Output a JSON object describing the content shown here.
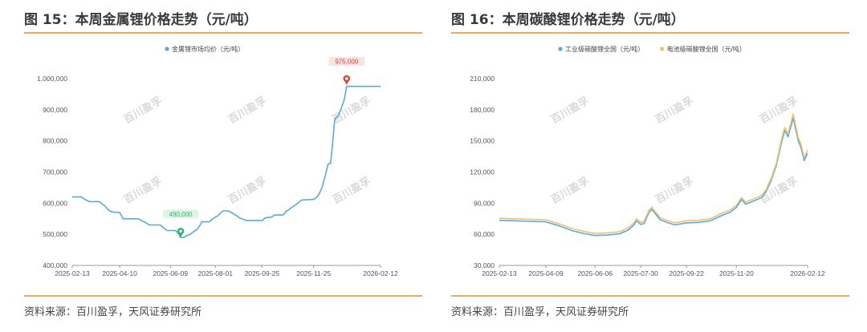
{
  "left": {
    "title": "图 15：本周金属锂价格走势（元/吨）",
    "source": "资料来源：百川盈孚，天风证券研究所"
  },
  "right": {
    "title": "图 16：本周碳酸锂价格走势（元/吨）",
    "source": "资料来源：百川盈孚，天风证券研究所"
  },
  "watermark": "百川盈孚",
  "chart_data": [
    {
      "type": "line",
      "title": "",
      "legend": [
        "金属锂市场均价（元/吨）"
      ],
      "legend_position": "top-center",
      "x_tick_labels": [
        "2025-02-13",
        "2025-04-10",
        "2025-06-09",
        "2025-08-01",
        "2025-09-25",
        "2025-11-25",
        "2026-02-12"
      ],
      "y_tick_labels": [
        "400,000",
        "500,000",
        "600,000",
        "700,000",
        "800,000",
        "900,000",
        "1,000,000"
      ],
      "ylim": [
        400000,
        1000000
      ],
      "grid": false,
      "colors": {
        "line": "#5aa9dc"
      },
      "series": [
        {
          "name": "金属锂市场均价（元/吨）",
          "points": [
            [
              "2025-02-13",
              620000
            ],
            [
              "2025-02-24",
              620000
            ],
            [
              "2025-02-28",
              612000
            ],
            [
              "2025-03-05",
              605000
            ],
            [
              "2025-03-17",
              605000
            ],
            [
              "2025-03-20",
              598000
            ],
            [
              "2025-03-24",
              590000
            ],
            [
              "2025-03-27",
              580000
            ],
            [
              "2025-03-31",
              572000
            ],
            [
              "2025-04-10",
              570000
            ],
            [
              "2025-04-12",
              560000
            ],
            [
              "2025-04-14",
              550000
            ],
            [
              "2025-05-02",
              550000
            ],
            [
              "2025-05-05",
              545000
            ],
            [
              "2025-05-09",
              540000
            ],
            [
              "2025-05-15",
              530000
            ],
            [
              "2025-05-28",
              530000
            ],
            [
              "2025-06-01",
              520000
            ],
            [
              "2025-06-05",
              512000
            ],
            [
              "2025-06-15",
              512000
            ],
            [
              "2025-06-19",
              500000
            ],
            [
              "2025-06-21",
              490000
            ],
            [
              "2025-06-25",
              490000
            ],
            [
              "2025-06-28",
              496000
            ],
            [
              "2025-07-02",
              500000
            ],
            [
              "2025-07-06",
              508000
            ],
            [
              "2025-07-10",
              515000
            ],
            [
              "2025-07-13",
              525000
            ],
            [
              "2025-07-16",
              540000
            ],
            [
              "2025-07-25",
              540000
            ],
            [
              "2025-07-28",
              548000
            ],
            [
              "2025-08-01",
              555000
            ],
            [
              "2025-08-04",
              560000
            ],
            [
              "2025-08-07",
              568000
            ],
            [
              "2025-08-10",
              575000
            ],
            [
              "2025-08-16",
              575000
            ],
            [
              "2025-08-20",
              570000
            ],
            [
              "2025-08-23",
              565000
            ],
            [
              "2025-08-27",
              558000
            ],
            [
              "2025-08-30",
              552000
            ],
            [
              "2025-09-03",
              548000
            ],
            [
              "2025-09-07",
              544000
            ],
            [
              "2025-09-25",
              544000
            ],
            [
              "2025-09-29",
              553000
            ],
            [
              "2025-10-06",
              555000
            ],
            [
              "2025-10-10",
              562000
            ],
            [
              "2025-10-20",
              562000
            ],
            [
              "2025-10-23",
              572000
            ],
            [
              "2025-10-27",
              580000
            ],
            [
              "2025-10-31",
              588000
            ],
            [
              "2025-11-04",
              595000
            ],
            [
              "2025-11-07",
              602000
            ],
            [
              "2025-11-11",
              610000
            ],
            [
              "2025-11-25",
              612000
            ],
            [
              "2025-11-29",
              620000
            ],
            [
              "2025-12-02",
              632000
            ],
            [
              "2025-12-05",
              650000
            ],
            [
              "2025-12-09",
              690000
            ],
            [
              "2025-12-12",
              725000
            ],
            [
              "2025-12-15",
              728000
            ],
            [
              "2025-12-17",
              780000
            ],
            [
              "2025-12-20",
              870000
            ],
            [
              "2025-12-24",
              880000
            ],
            [
              "2025-12-27",
              900000
            ],
            [
              "2025-12-31",
              930000
            ],
            [
              "2026-01-03",
              975000
            ],
            [
              "2026-02-12",
              975000
            ]
          ]
        }
      ],
      "annotations": [
        {
          "label": "975,000",
          "x": "2026-01-03",
          "y": 1000000,
          "kind": "max",
          "color": "#d9433d"
        },
        {
          "label": "490,000",
          "x": "2025-06-21",
          "y": 510000,
          "kind": "min",
          "color": "#2bb673"
        }
      ]
    },
    {
      "type": "line",
      "title": "",
      "legend": [
        "工业级碳酸锂全国（元/吨）",
        "电池级碳酸锂全国（元/吨）"
      ],
      "legend_position": "top-center",
      "x_tick_labels": [
        "2025-02-13",
        "2025-04-09",
        "2025-06-06",
        "2025-07-30",
        "2025-09-22",
        "2025-11-20",
        "2026-02-12"
      ],
      "y_tick_labels": [
        "30,000",
        "60,000",
        "90,000",
        "120,000",
        "150,000",
        "180,000",
        "210,000"
      ],
      "ylim": [
        30000,
        210000
      ],
      "grid": false,
      "colors": {
        "industrial": "#5aa9dc",
        "battery": "#f0c070"
      },
      "series": [
        {
          "name": "工业级碳酸锂全国（元/吨）",
          "points": [
            [
              "2025-02-13",
              73500
            ],
            [
              "2025-03-01",
              73000
            ],
            [
              "2025-03-20",
              72500
            ],
            [
              "2025-04-09",
              72000
            ],
            [
              "2025-04-25",
              68000
            ],
            [
              "2025-05-10",
              63500
            ],
            [
              "2025-05-25",
              60500
            ],
            [
              "2025-06-06",
              58800
            ],
            [
              "2025-06-20",
              59200
            ],
            [
              "2025-07-05",
              60500
            ],
            [
              "2025-07-15",
              64000
            ],
            [
              "2025-07-22",
              69000
            ],
            [
              "2025-07-25",
              73000
            ],
            [
              "2025-07-30",
              69500
            ],
            [
              "2025-08-03",
              70500
            ],
            [
              "2025-08-09",
              81500
            ],
            [
              "2025-08-12",
              84000
            ],
            [
              "2025-08-16",
              80000
            ],
            [
              "2025-08-22",
              74000
            ],
            [
              "2025-08-30",
              71500
            ],
            [
              "2025-09-08",
              69000
            ],
            [
              "2025-09-22",
              71000
            ],
            [
              "2025-10-06",
              71500
            ],
            [
              "2025-10-20",
              73000
            ],
            [
              "2025-10-28",
              76000
            ],
            [
              "2025-11-05",
              79000
            ],
            [
              "2025-11-12",
              81000
            ],
            [
              "2025-11-20",
              86000
            ],
            [
              "2025-11-26",
              93500
            ],
            [
              "2025-12-01",
              89000
            ],
            [
              "2025-12-10",
              92000
            ],
            [
              "2025-12-20",
              95500
            ],
            [
              "2025-12-25",
              101000
            ],
            [
              "2025-12-31",
              112000
            ],
            [
              "2026-01-06",
              126000
            ],
            [
              "2026-01-12",
              148000
            ],
            [
              "2026-01-16",
              160000
            ],
            [
              "2026-01-20",
              154000
            ],
            [
              "2026-01-26",
              172000
            ],
            [
              "2026-02-01",
              150000
            ],
            [
              "2026-02-04",
              144000
            ],
            [
              "2026-02-08",
              131000
            ],
            [
              "2026-02-12",
              138000
            ]
          ]
        },
        {
          "name": "电池级碳酸锂全国（元/吨）",
          "points": [
            [
              "2025-02-13",
              75500
            ],
            [
              "2025-03-01",
              75000
            ],
            [
              "2025-03-20",
              74500
            ],
            [
              "2025-04-09",
              74000
            ],
            [
              "2025-04-25",
              70000
            ],
            [
              "2025-05-10",
              65500
            ],
            [
              "2025-05-25",
              62500
            ],
            [
              "2025-06-06",
              60800
            ],
            [
              "2025-06-20",
              61200
            ],
            [
              "2025-07-05",
              62500
            ],
            [
              "2025-07-15",
              66000
            ],
            [
              "2025-07-22",
              71000
            ],
            [
              "2025-07-25",
              75000
            ],
            [
              "2025-07-30",
              71500
            ],
            [
              "2025-08-03",
              72500
            ],
            [
              "2025-08-09",
              83500
            ],
            [
              "2025-08-12",
              86000
            ],
            [
              "2025-08-16",
              82000
            ],
            [
              "2025-08-22",
              76000
            ],
            [
              "2025-08-30",
              73500
            ],
            [
              "2025-09-08",
              71000
            ],
            [
              "2025-09-22",
              73000
            ],
            [
              "2025-10-06",
              73500
            ],
            [
              "2025-10-20",
              75000
            ],
            [
              "2025-10-28",
              78000
            ],
            [
              "2025-11-05",
              81000
            ],
            [
              "2025-11-12",
              83000
            ],
            [
              "2025-11-20",
              88000
            ],
            [
              "2025-11-26",
              95500
            ],
            [
              "2025-12-01",
              91000
            ],
            [
              "2025-12-10",
              94000
            ],
            [
              "2025-12-20",
              97500
            ],
            [
              "2025-12-25",
              103000
            ],
            [
              "2025-12-31",
              114000
            ],
            [
              "2026-01-06",
              128000
            ],
            [
              "2026-01-12",
              151000
            ],
            [
              "2026-01-16",
              163000
            ],
            [
              "2026-01-20",
              157000
            ],
            [
              "2026-01-26",
              176000
            ],
            [
              "2026-02-01",
              153000
            ],
            [
              "2026-02-04",
              147000
            ],
            [
              "2026-02-08",
              134000
            ],
            [
              "2026-02-12",
              141000
            ]
          ]
        }
      ]
    }
  ]
}
